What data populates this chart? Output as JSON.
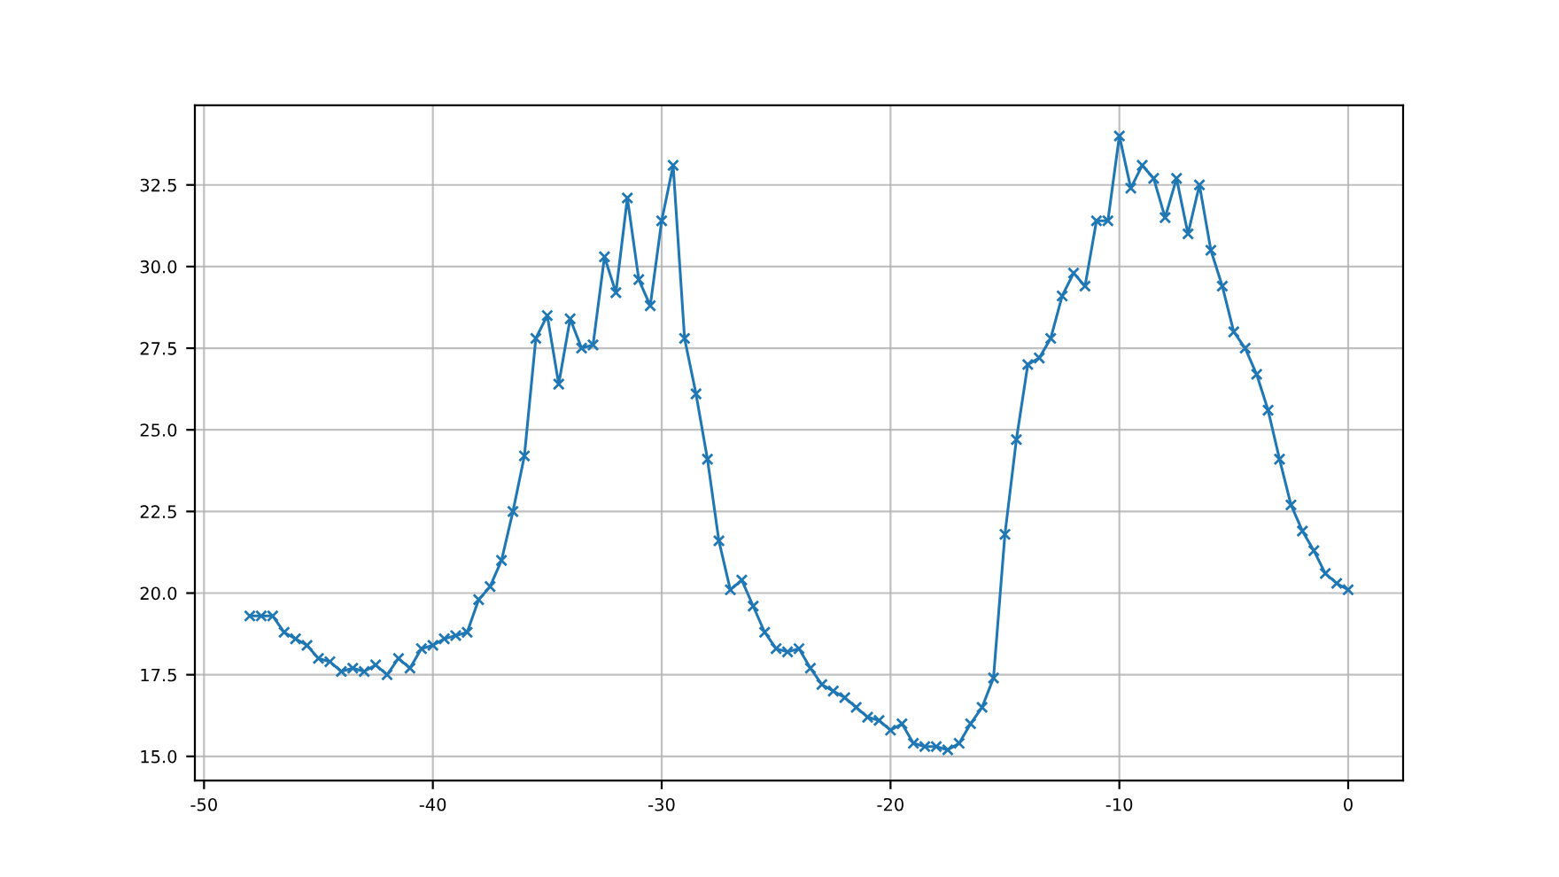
{
  "chart_data": {
    "type": "line",
    "marker": "cross",
    "grid": true,
    "x": [
      -48,
      -47.5,
      -47,
      -46.5,
      -46,
      -45.5,
      -45,
      -44.5,
      -44,
      -43.5,
      -43,
      -42.5,
      -42,
      -41.5,
      -41,
      -40.5,
      -40,
      -39.5,
      -39,
      -38.5,
      -38,
      -37.5,
      -37,
      -36.5,
      -36,
      -35.5,
      -35,
      -34.5,
      -34,
      -33.5,
      -33,
      -32.5,
      -32,
      -31.5,
      -31,
      -30.5,
      -30,
      -29.5,
      -29,
      -28.5,
      -28,
      -27.5,
      -27,
      -26.5,
      -26,
      -25.5,
      -25,
      -24.5,
      -24,
      -23.5,
      -23,
      -22.5,
      -22,
      -21.5,
      -21,
      -20.5,
      -20,
      -19.5,
      -19,
      -18.5,
      -18,
      -17.5,
      -17,
      -16.5,
      -16,
      -15.5,
      -15,
      -14.5,
      -14,
      -13.5,
      -13,
      -12.5,
      -12,
      -11.5,
      -11,
      -10.5,
      -10,
      -9.5,
      -9,
      -8.5,
      -8,
      -7.5,
      -7,
      -6.5,
      -6,
      -5.5,
      -5,
      -4.5,
      -4,
      -3.5,
      -3,
      -2.5,
      -2,
      -1.5,
      -1,
      -0.5,
      0
    ],
    "series": [
      {
        "color": "#1f77b4",
        "values": [
          19.3,
          19.3,
          19.3,
          18.8,
          18.6,
          18.4,
          18.0,
          17.9,
          17.6,
          17.7,
          17.6,
          17.8,
          17.5,
          18.0,
          17.7,
          18.3,
          18.4,
          18.6,
          18.7,
          18.8,
          19.8,
          20.2,
          21.0,
          22.5,
          24.2,
          27.8,
          28.5,
          26.4,
          28.4,
          27.5,
          27.6,
          30.3,
          29.2,
          32.1,
          29.6,
          28.8,
          31.4,
          33.1,
          27.8,
          26.1,
          24.1,
          21.6,
          20.1,
          20.4,
          19.6,
          18.8,
          18.3,
          18.2,
          18.3,
          17.7,
          17.2,
          17.0,
          16.8,
          16.5,
          16.2,
          16.1,
          15.8,
          16.0,
          15.4,
          15.3,
          15.3,
          15.2,
          15.4,
          16.0,
          16.5,
          17.4,
          21.8,
          24.7,
          27.0,
          27.2,
          27.8,
          29.1,
          29.8,
          29.4,
          31.4,
          31.4,
          34.0,
          32.4,
          33.1,
          32.7,
          31.5,
          32.7,
          31.0,
          32.5,
          30.5,
          29.4,
          28.0,
          27.5,
          26.7,
          25.6,
          24.1,
          22.7,
          21.9,
          21.3,
          20.6,
          20.3,
          20.1
        ]
      }
    ],
    "xlim": [
      -50.4,
      2.4
    ],
    "ylim": [
      14.26,
      34.94
    ],
    "xticks": [
      -50,
      -40,
      -30,
      -20,
      -10,
      0
    ],
    "yticks": [
      {
        "value": 15,
        "label": "15.0"
      },
      {
        "value": 17.5,
        "label": "17.5"
      },
      {
        "value": 20,
        "label": "20.0"
      },
      {
        "value": 22.5,
        "label": "22.5"
      },
      {
        "value": 25,
        "label": "25.0"
      },
      {
        "value": 27.5,
        "label": "27.5"
      },
      {
        "value": 30,
        "label": "30.0"
      },
      {
        "value": 32.5,
        "label": "32.5"
      }
    ]
  }
}
